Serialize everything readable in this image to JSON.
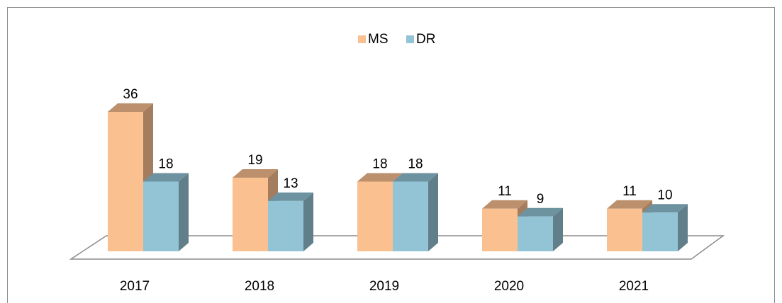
{
  "chart_data": {
    "type": "bar3d",
    "categories": [
      "2017",
      "2018",
      "2019",
      "2020",
      "2021"
    ],
    "series": [
      {
        "name": "MS",
        "color": "#fac090",
        "values": [
          36,
          19,
          18,
          11,
          11
        ]
      },
      {
        "name": "DR",
        "color": "#93c4d5",
        "values": [
          18,
          13,
          18,
          9,
          10
        ]
      }
    ],
    "legend": "top"
  }
}
